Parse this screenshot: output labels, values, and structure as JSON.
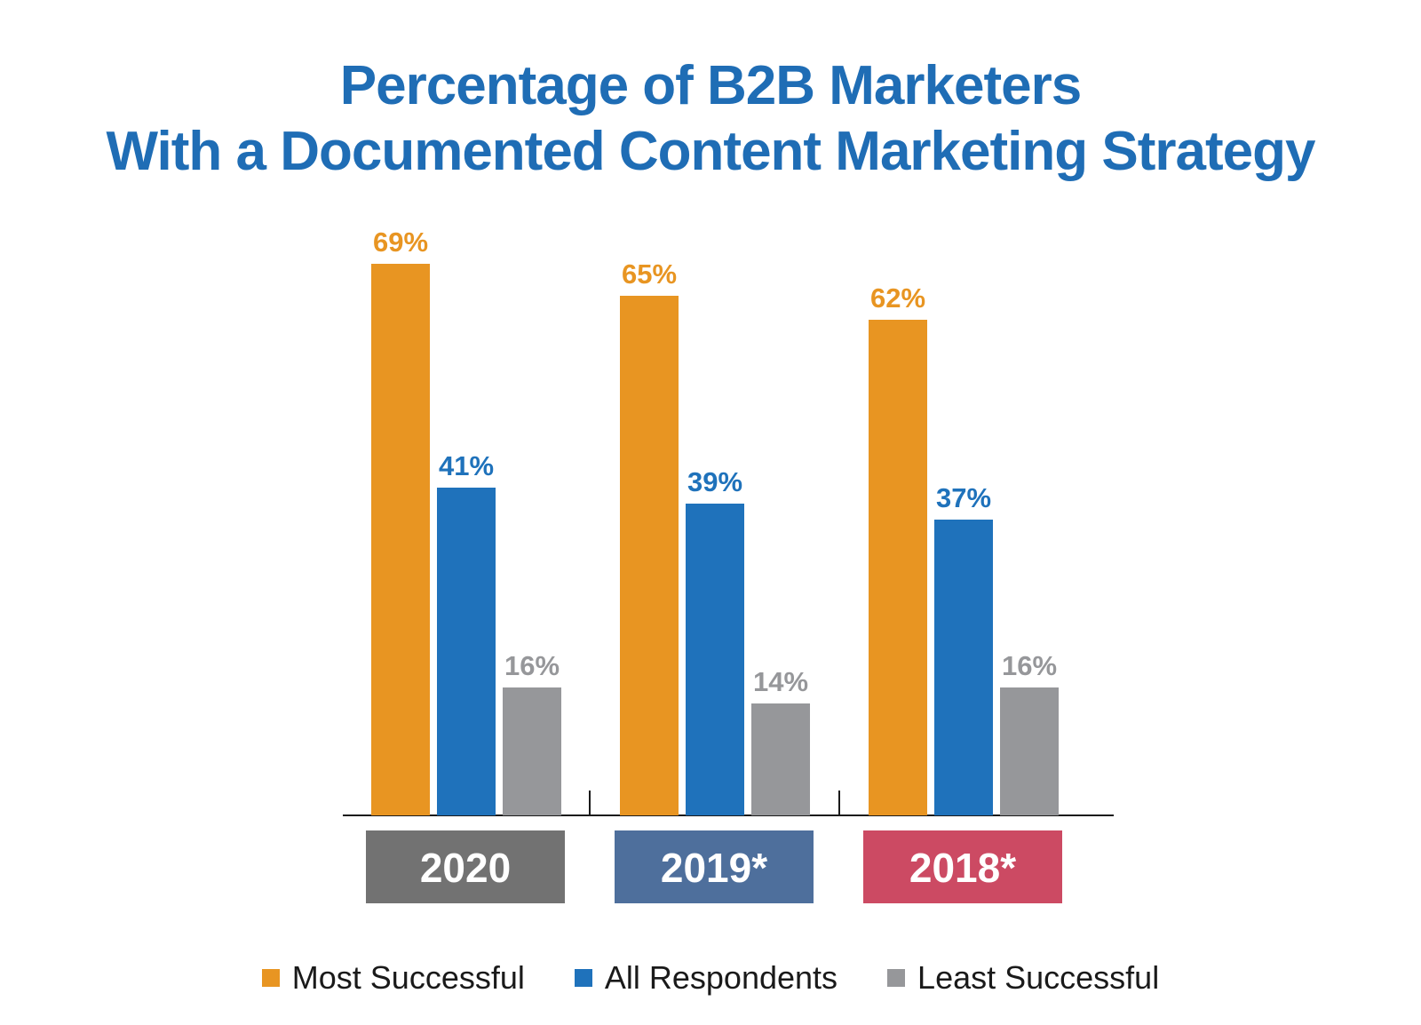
{
  "chart_data": {
    "type": "bar",
    "title_lines": [
      "Percentage of B2B Marketers",
      "With a Documented Content Marketing Strategy"
    ],
    "categories": [
      "2020",
      "2019*",
      "2018*"
    ],
    "category_label_colors": [
      "#727272",
      "#4e6f9c",
      "#cc4a63"
    ],
    "series": [
      {
        "name": "Most Successful",
        "color": "#e89522",
        "values": [
          69,
          65,
          62
        ],
        "labels": [
          "69%",
          "65%",
          "62%"
        ]
      },
      {
        "name": "All Respondents",
        "color": "#1f72bb",
        "values": [
          41,
          39,
          37
        ],
        "labels": [
          "41%",
          "39%",
          "37%"
        ]
      },
      {
        "name": "Least Successful",
        "color": "#96979a",
        "values": [
          16,
          14,
          16
        ],
        "labels": [
          "16%",
          "14%",
          "16%"
        ]
      }
    ],
    "ylim": [
      0,
      70
    ],
    "grid": false,
    "legend_position": "bottom"
  }
}
